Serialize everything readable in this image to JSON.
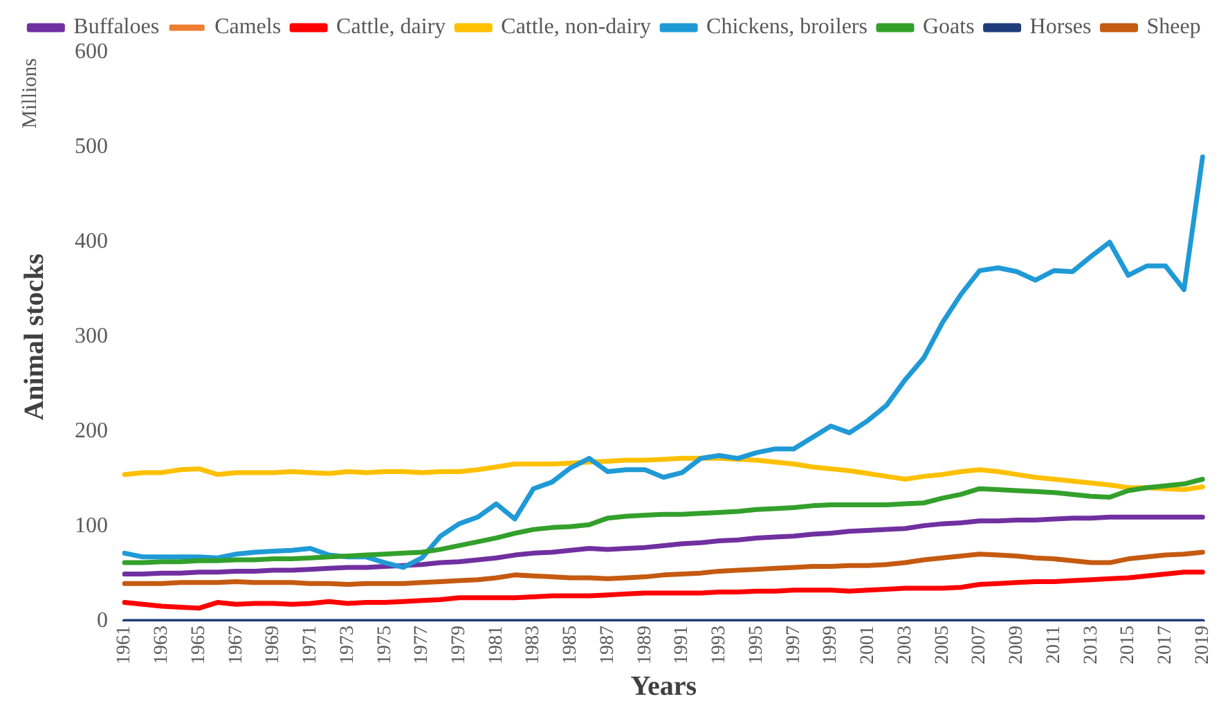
{
  "chart_data": {
    "type": "line",
    "xlabel": "Years",
    "ylabel": "Animal stocks",
    "annotations": [
      "Millions"
    ],
    "categories": [
      "1961",
      null,
      "1963",
      null,
      "1965",
      null,
      "1967",
      null,
      "1969",
      null,
      "1971",
      null,
      "1973",
      null,
      "1975",
      null,
      "1977",
      null,
      "1979",
      null,
      "1981",
      null,
      "1983",
      null,
      "1985",
      null,
      "1987",
      null,
      "1989",
      null,
      "1991",
      null,
      "1993",
      null,
      "1995",
      null,
      "1997",
      null,
      "1999",
      null,
      "2001",
      null,
      "2003",
      null,
      "2005",
      null,
      "2007",
      null,
      "2009",
      null,
      "2011",
      null,
      "2013",
      null,
      "2015",
      null,
      "2017",
      null,
      "2019"
    ],
    "ylim": [
      0,
      600
    ],
    "yticks": [
      0,
      100,
      200,
      300,
      400,
      500,
      600
    ],
    "grid": false,
    "legend": "top",
    "marker": "none",
    "line_style": "solid",
    "series": [
      {
        "name": "Buffaloes",
        "color": "#7030a0",
        "values": [
          50,
          50,
          51,
          51,
          52,
          52,
          53,
          53,
          54,
          54,
          55,
          56,
          57,
          57,
          58,
          59,
          60,
          62,
          63,
          65,
          67,
          70,
          72,
          73,
          75,
          77,
          76,
          77,
          78,
          80,
          82,
          83,
          85,
          86,
          88,
          89,
          90,
          92,
          93,
          95,
          96,
          97,
          98,
          101,
          103,
          104,
          106,
          106,
          107,
          107,
          108,
          109,
          109,
          110,
          110,
          110,
          110,
          110,
          110
        ]
      },
      {
        "name": "Camels",
        "color": "#ed7d31",
        "values": [
          null,
          null,
          null,
          null,
          null,
          null,
          null,
          null,
          null,
          null,
          null,
          null,
          null,
          null,
          null,
          null,
          null,
          null,
          null,
          null,
          null,
          null,
          null,
          null,
          null,
          null,
          null,
          null,
          null,
          null,
          null,
          null,
          null,
          null,
          null,
          null,
          null,
          null,
          null,
          null,
          null,
          null,
          null,
          null,
          null,
          null,
          null,
          null,
          null,
          null,
          null,
          null,
          null,
          null,
          null,
          null,
          null,
          null,
          null
        ]
      },
      {
        "name": "Cattle, dairy",
        "color": "#ff0000",
        "values": [
          20,
          18,
          16,
          15,
          14,
          20,
          18,
          19,
          19,
          18,
          19,
          21,
          19,
          20,
          20,
          21,
          22,
          23,
          25,
          25,
          25,
          25,
          26,
          27,
          27,
          27,
          28,
          29,
          30,
          30,
          30,
          30,
          31,
          31,
          32,
          32,
          33,
          33,
          33,
          32,
          33,
          34,
          35,
          35,
          35,
          36,
          39,
          40,
          41,
          42,
          42,
          43,
          44,
          45,
          46,
          48,
          50,
          52,
          52
        ]
      },
      {
        "name": "Cattle, non-dairy",
        "color": "#ffc000",
        "values": [
          155,
          157,
          157,
          160,
          161,
          155,
          157,
          157,
          157,
          158,
          157,
          156,
          158,
          157,
          158,
          158,
          157,
          158,
          158,
          160,
          163,
          166,
          166,
          166,
          167,
          168,
          169,
          170,
          170,
          171,
          172,
          172,
          172,
          171,
          170,
          168,
          166,
          163,
          161,
          159,
          156,
          153,
          150,
          153,
          155,
          158,
          160,
          158,
          155,
          152,
          150,
          148,
          146,
          144,
          141,
          141,
          140,
          139,
          142
        ]
      },
      {
        "name": "Chickens, broilers",
        "color": "#1f9ad6",
        "values": [
          72,
          68,
          68,
          68,
          68,
          67,
          71,
          73,
          74,
          75,
          77,
          70,
          68,
          68,
          62,
          57,
          67,
          90,
          103,
          110,
          124,
          108,
          140,
          147,
          162,
          172,
          158,
          160,
          160,
          152,
          157,
          172,
          175,
          172,
          178,
          182,
          182,
          194,
          206,
          199,
          212,
          228,
          255,
          278,
          315,
          345,
          370,
          373,
          369,
          360,
          370,
          369,
          385,
          400,
          365,
          375,
          375,
          350,
          490
        ]
      },
      {
        "name": "Goats",
        "color": "#33a02c",
        "values": [
          62,
          62,
          63,
          63,
          64,
          64,
          65,
          65,
          66,
          66,
          67,
          68,
          69,
          70,
          71,
          72,
          73,
          76,
          80,
          84,
          88,
          93,
          97,
          99,
          100,
          102,
          109,
          111,
          112,
          113,
          113,
          114,
          115,
          116,
          118,
          119,
          120,
          122,
          123,
          123,
          123,
          123,
          124,
          125,
          130,
          134,
          140,
          139,
          138,
          137,
          136,
          134,
          132,
          131,
          138,
          141,
          143,
          145,
          150
        ]
      },
      {
        "name": "Horses",
        "color": "#1f3d7a",
        "values": [
          0,
          0,
          0,
          0,
          0,
          0,
          0,
          0,
          0,
          0,
          0,
          0,
          0,
          0,
          0,
          0,
          0,
          0,
          0,
          0,
          0,
          0,
          0,
          0,
          0,
          0,
          0,
          0,
          0,
          0,
          0,
          0,
          0,
          0,
          0,
          0,
          0,
          0,
          0,
          0,
          0,
          0,
          0,
          0,
          0,
          0,
          0,
          0,
          0,
          0,
          0,
          0,
          0,
          0,
          0,
          0,
          0,
          0,
          0
        ]
      },
      {
        "name": "Sheep",
        "color": "#c55a11",
        "values": [
          40,
          40,
          40,
          41,
          41,
          41,
          42,
          41,
          41,
          41,
          40,
          40,
          39,
          40,
          40,
          40,
          41,
          42,
          43,
          44,
          46,
          49,
          48,
          47,
          46,
          46,
          45,
          46,
          47,
          49,
          50,
          51,
          53,
          54,
          55,
          56,
          57,
          58,
          58,
          59,
          59,
          60,
          62,
          65,
          67,
          69,
          71,
          70,
          69,
          67,
          66,
          64,
          62,
          62,
          66,
          68,
          70,
          71,
          73
        ]
      }
    ]
  }
}
